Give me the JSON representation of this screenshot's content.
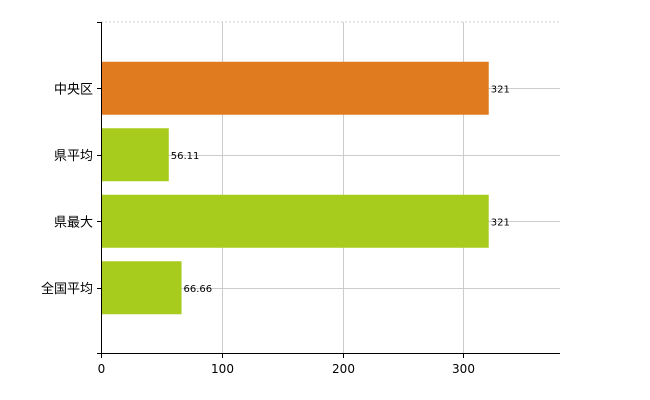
{
  "chart_data": {
    "type": "bar",
    "orientation": "horizontal",
    "categories": [
      "中央区",
      "県平均",
      "県最大",
      "全国平均"
    ],
    "values": [
      321,
      56.11,
      321,
      66.66
    ],
    "data_labels": [
      "321",
      "56.11",
      "321",
      "66.66"
    ],
    "bar_colors": [
      "#e07b20",
      "#a8cc1e",
      "#a8cc1e",
      "#a8cc1e"
    ],
    "xlim": [
      0,
      380
    ],
    "xticks": [
      0,
      100,
      200,
      300
    ],
    "xtick_labels": [
      "0",
      "100",
      "200",
      "300"
    ],
    "grid": true,
    "grid_color": "#cccccc",
    "title": "",
    "xlabel": "",
    "ylabel": ""
  }
}
